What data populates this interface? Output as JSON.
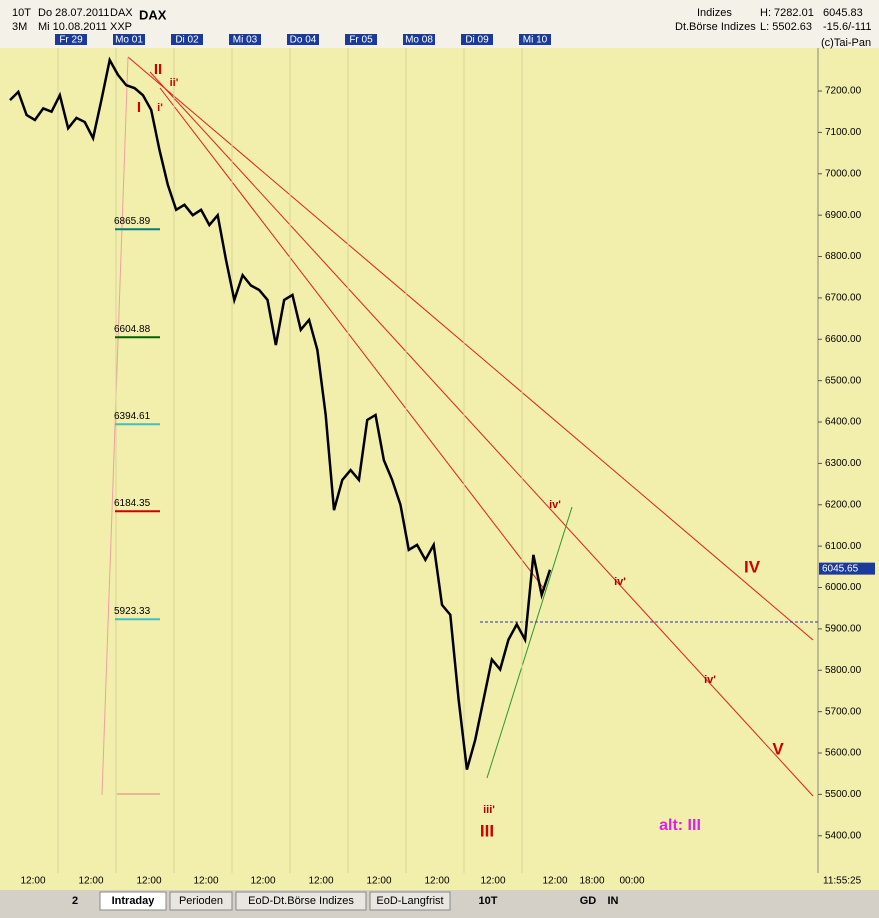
{
  "header": {
    "period": "10T",
    "start": "Do 28.07.2011",
    "symbol": "DAX",
    "range": "3M",
    "end": "Mi 10.08.2011",
    "exchange": "XXP",
    "name": "DAX",
    "group": "Indizes",
    "source": "Dt.Börse Indizes",
    "high": "H: 7282.01",
    "low": "L: 5502.63",
    "last": "6045.83",
    "change": "-15.6/-111",
    "copyright": "(c)Tai-Pan"
  },
  "days": [
    "Fr 29",
    "Mo 01",
    "Di 02",
    "Mi 03",
    "Do 04",
    "Fr 05",
    "Mo 08",
    "Di 09",
    "Mi 10"
  ],
  "time_labels": [
    "12:00",
    "12:00",
    "12:00",
    "12:00",
    "12:00",
    "12:00",
    "12:00",
    "12:00",
    "12:00",
    "12:00",
    "18:00",
    "00:00"
  ],
  "clock": "11:55:25",
  "tabs": [
    "Intraday",
    "Perioden",
    "EoD-Dt.Börse Indizes",
    "EoD-Langfrist"
  ],
  "toolbar": [
    "2",
    "10T",
    "GD",
    "IN"
  ],
  "annotations": [
    "II",
    "ii'",
    "I",
    "i'",
    "iv'",
    "iv'",
    "iv'",
    "IV",
    "V",
    "iii'",
    "III",
    "alt: III"
  ],
  "chart_data": {
    "type": "line",
    "color": "#000000",
    "categories": [
      null,
      null,
      null,
      null,
      null,
      null,
      null,
      null,
      null,
      null,
      null,
      null,
      null,
      null,
      null,
      null,
      null,
      null,
      null,
      null,
      null,
      null,
      null,
      null,
      null,
      null,
      null,
      null,
      null,
      null,
      null,
      null,
      null,
      null,
      null,
      null,
      null,
      null,
      null,
      null,
      null,
      null,
      null,
      null,
      null,
      null,
      null,
      null,
      null,
      null,
      null,
      null,
      null,
      null,
      null,
      null,
      null,
      null,
      null,
      null,
      null,
      null,
      null,
      null,
      null,
      null
    ],
    "values": [
      7178,
      7198,
      7142,
      7130,
      7158,
      7150,
      7190,
      7110,
      7135,
      7125,
      7086,
      7178,
      7275,
      7239,
      7214,
      7207,
      7190,
      7154,
      7057,
      6973,
      6913,
      6925,
      6900,
      6913,
      6876,
      6900,
      6792,
      6695,
      6755,
      6730,
      6719,
      6695,
      6586,
      6695,
      6707,
      6623,
      6647,
      6574,
      6417,
      6187,
      6260,
      6284,
      6260,
      6405,
      6417,
      6308,
      6260,
      6200,
      6091,
      6103,
      6067,
      6103,
      5958,
      5934,
      5729,
      5560,
      5632,
      5729,
      5826,
      5802,
      5874,
      5911,
      5874,
      6079,
      5982,
      6043
    ],
    "ylim": [
      5310,
      7304
    ],
    "yticks": [
      {
        "value": 5400,
        "label": "5400.00"
      },
      {
        "value": 5500,
        "label": "5500.00"
      },
      {
        "value": 5600,
        "label": "5600.00"
      },
      {
        "value": 5700,
        "label": "5700.00"
      },
      {
        "value": 5800,
        "label": "5800.00"
      },
      {
        "value": 5900,
        "label": "5900.00"
      },
      {
        "value": 6000,
        "label": "6000.00"
      },
      {
        "value": 6100,
        "label": "6100.00"
      },
      {
        "value": 6200,
        "label": "6200.00"
      },
      {
        "value": 6300,
        "label": "6300.00"
      },
      {
        "value": 6400,
        "label": "6400.00"
      },
      {
        "value": 6500,
        "label": "6500.00"
      },
      {
        "value": 6600,
        "label": "6600.00"
      },
      {
        "value": 6700,
        "label": "6700.00"
      },
      {
        "value": 6800,
        "label": "6800.00"
      },
      {
        "value": 6900,
        "label": "6900.00"
      },
      {
        "value": 7000,
        "label": "7000.00"
      },
      {
        "value": 7100,
        "label": "7100.00"
      },
      {
        "value": 7200,
        "label": "7200.00"
      }
    ],
    "current": 6045.65,
    "levels": [
      {
        "value": 6865.89,
        "color": "#008080"
      },
      {
        "value": 6604.88,
        "color": "#006400"
      },
      {
        "value": 6394.61,
        "color": "#40c0c0"
      },
      {
        "value": 6184.35,
        "color": "#d00000"
      },
      {
        "value": 5923.33,
        "color": "#40c0c0"
      }
    ]
  }
}
